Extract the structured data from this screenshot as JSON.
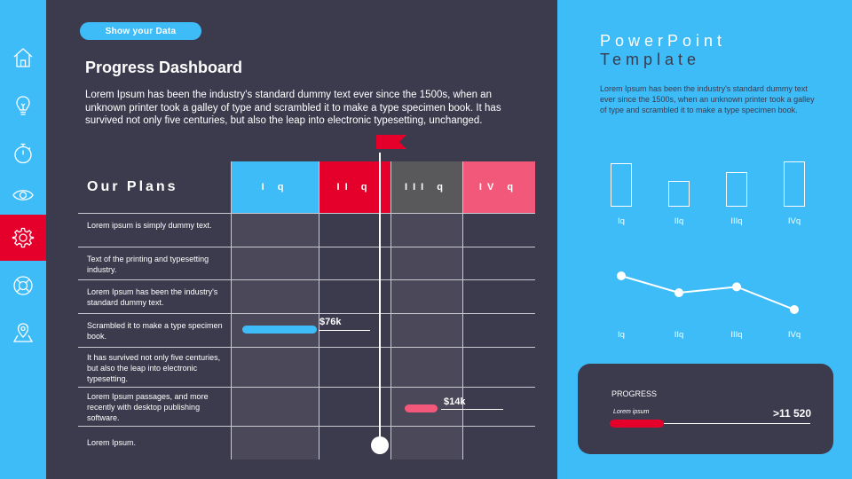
{
  "nav": {
    "items": [
      {
        "icon": "home-icon"
      },
      {
        "icon": "lightbulb-icon"
      },
      {
        "icon": "stopwatch-icon"
      },
      {
        "icon": "eye-icon"
      },
      {
        "icon": "gear-icon",
        "active": true
      },
      {
        "icon": "lifebuoy-icon"
      },
      {
        "icon": "map-pin-icon"
      }
    ],
    "active_color": "#e4002b"
  },
  "main": {
    "pill_label": "Show your Data",
    "title": "Progress Dashboard",
    "description": "Lorem Ipsum has been the industry's standard dummy text ever since the 1500s, when an unknown printer took a galley of type and scrambled it to make a type specimen book. It has survived not only five centuries, but also the leap into electronic typesetting, unchanged.",
    "plans_label": "Our Plans",
    "quarters": [
      {
        "label": "I q",
        "color": "#3dbcf8"
      },
      {
        "label": "II q",
        "color": "#e4002b"
      },
      {
        "label": "III q",
        "color": "#59595b"
      },
      {
        "label": "IV q",
        "color": "#f2587a"
      }
    ],
    "rows": [
      {
        "label": "Lorem ipsum is simply dummy text."
      },
      {
        "label": "Text of the printing and typesetting industry."
      },
      {
        "label": "Lorem Ipsum has been the industry's standard dummy text."
      },
      {
        "label": "Scrambled it to make a type specimen book.",
        "bar": {
          "value": "$76k",
          "color": "#3dbcf8"
        }
      },
      {
        "label": "It has survived not only five centuries, but also the leap into electronic typesetting."
      },
      {
        "label": "Lorem Ipsum passages, and more recently with desktop publishing software.",
        "bar": {
          "value": "$14k",
          "color": "#f2587a"
        }
      },
      {
        "label": "Lorem Ipsum."
      }
    ],
    "marker_color": "#e4002b"
  },
  "side": {
    "title_part1": "PowerPoint",
    "title_part2": "Template",
    "description": "Lorem Ipsum has been the industry's standard dummy text ever since the 1500s, when an unknown printer took a galley of type and scrambled it to make a type specimen book.",
    "chart_data": [
      {
        "type": "bar",
        "categories": [
          "Iq",
          "IIq",
          "IIIq",
          "IVq"
        ],
        "values": [
          48,
          28,
          38,
          50
        ],
        "ylim": [
          0,
          55
        ]
      },
      {
        "type": "line",
        "categories": [
          "Iq",
          "IIq",
          "IIIq",
          "IVq"
        ],
        "values": [
          40,
          20,
          27,
          0
        ],
        "ylim": [
          0,
          40
        ]
      }
    ],
    "progress": {
      "heading": "PROGRESS",
      "sub": "Lorem ipsum",
      "value": ">11 520",
      "fill_fraction": 0.27,
      "color": "#e4002b"
    }
  }
}
